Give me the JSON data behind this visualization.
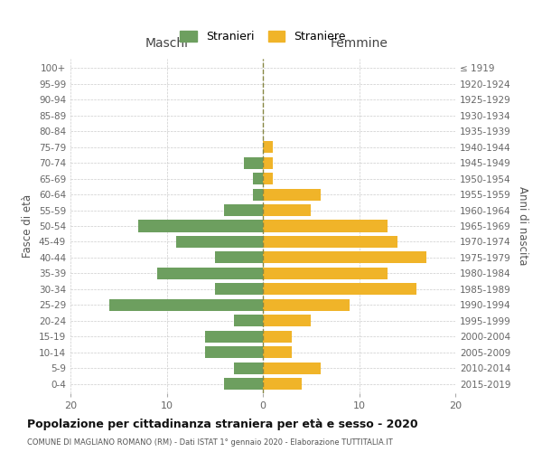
{
  "age_groups": [
    "0-4",
    "5-9",
    "10-14",
    "15-19",
    "20-24",
    "25-29",
    "30-34",
    "35-39",
    "40-44",
    "45-49",
    "50-54",
    "55-59",
    "60-64",
    "65-69",
    "70-74",
    "75-79",
    "80-84",
    "85-89",
    "90-94",
    "95-99",
    "100+"
  ],
  "birth_years": [
    "2015-2019",
    "2010-2014",
    "2005-2009",
    "2000-2004",
    "1995-1999",
    "1990-1994",
    "1985-1989",
    "1980-1984",
    "1975-1979",
    "1970-1974",
    "1965-1969",
    "1960-1964",
    "1955-1959",
    "1950-1954",
    "1945-1949",
    "1940-1944",
    "1935-1939",
    "1930-1934",
    "1925-1929",
    "1920-1924",
    "≤ 1919"
  ],
  "maschi": [
    4,
    3,
    6,
    6,
    3,
    16,
    5,
    11,
    5,
    9,
    13,
    4,
    1,
    1,
    2,
    0,
    0,
    0,
    0,
    0,
    0
  ],
  "femmine": [
    4,
    6,
    3,
    3,
    5,
    9,
    16,
    13,
    17,
    14,
    13,
    5,
    6,
    1,
    1,
    1,
    0,
    0,
    0,
    0,
    0
  ],
  "maschi_color": "#6d9f5f",
  "femmine_color": "#f0b429",
  "title": "Popolazione per cittadinanza straniera per età e sesso - 2020",
  "subtitle": "COMUNE DI MAGLIANO ROMANO (RM) - Dati ISTAT 1° gennaio 2020 - Elaborazione TUTTITALIA.IT",
  "xlabel_left": "Maschi",
  "xlabel_right": "Femmine",
  "ylabel_left": "Fasce di età",
  "ylabel_right": "Anni di nascita",
  "legend_stranieri": "Stranieri",
  "legend_straniere": "Straniere",
  "xlim": 20,
  "background_color": "#ffffff",
  "grid_color": "#cccccc",
  "bar_height": 0.75
}
